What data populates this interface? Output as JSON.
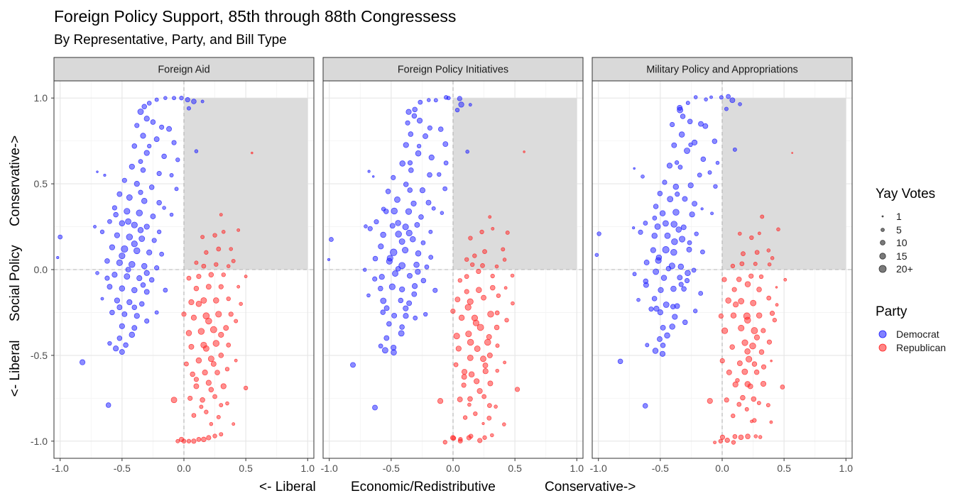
{
  "title": "Foreign Policy Support, 85th through 88th Congressess",
  "subtitle": "By Representative, Party, and Bill Type",
  "x_axis_label_parts": [
    "<- Liberal",
    "Economic/Redistributive",
    "Conservative->"
  ],
  "y_axis_label": "<- Liberal     Social Policy     Conservative->",
  "legend": {
    "size_title": "Yay Votes",
    "size_labels": [
      "1",
      "5",
      "10",
      "15",
      "20+"
    ],
    "party_title": "Party",
    "party_labels": [
      "Democrat",
      "Republican"
    ]
  },
  "colors": {
    "democrat": "#1a1aff",
    "republican": "#ff2020",
    "strip_bg": "#d9d9d9",
    "quadrant_shade": "#dcdcdc",
    "grid_major": "#e6e6e6",
    "grid_minor": "#f3f3f3",
    "reference_line": "#b3b3b3"
  },
  "chart_data": {
    "type": "scatter",
    "facets": [
      "Foreign Aid",
      "Foreign Policy Initiatives",
      "Military Policy and Appropriations"
    ],
    "xlim": [
      -1.05,
      1.05
    ],
    "ylim": [
      -1.1,
      1.1
    ],
    "x_ticks": [
      -1.0,
      -0.5,
      0.0,
      0.5,
      1.0
    ],
    "x_tick_labels": [
      "-1.0",
      "-0.5",
      "0.0",
      "0.5",
      "1.0"
    ],
    "y_ticks": [
      -1.0,
      -0.5,
      0.0,
      0.5,
      1.0
    ],
    "y_tick_labels": [
      "-1.0",
      "-0.5",
      "0.0",
      "0.5",
      "1.0"
    ],
    "grid": true,
    "legend_position": "right",
    "reference_lines": {
      "x": 0,
      "y": 0
    },
    "shaded_region": {
      "x": [
        0,
        1
      ],
      "y": [
        0,
        1
      ]
    },
    "size_scale": {
      "votes": [
        1,
        5,
        10,
        15,
        20
      ],
      "radius": [
        1.0,
        2.4,
        3.4,
        4.2,
        5.0
      ]
    },
    "series": [
      {
        "name": "Democrat",
        "points": [
          {
            "x": -1.0,
            "y": 0.19,
            "v": 8
          },
          {
            "x": -1.02,
            "y": 0.07,
            "v": 3
          },
          {
            "x": -0.82,
            "y": -0.54,
            "v": 12
          },
          {
            "x": -0.61,
            "y": -0.79,
            "v": 10
          },
          {
            "x": -0.35,
            "y": 0.92,
            "v": 14
          },
          {
            "x": -0.32,
            "y": 0.95,
            "v": 10
          },
          {
            "x": -0.28,
            "y": 0.97,
            "v": 8
          },
          {
            "x": -0.22,
            "y": 0.99,
            "v": 6
          },
          {
            "x": -0.15,
            "y": 1.0,
            "v": 5
          },
          {
            "x": -0.08,
            "y": 1.0,
            "v": 6
          },
          {
            "x": -0.02,
            "y": 1.0,
            "v": 7
          },
          {
            "x": 0.03,
            "y": 0.99,
            "v": 9
          },
          {
            "x": 0.08,
            "y": 0.98,
            "v": 10
          },
          {
            "x": 0.15,
            "y": 0.98,
            "v": 4
          },
          {
            "x": 0.04,
            "y": 0.94,
            "v": 6
          },
          {
            "x": -0.3,
            "y": 0.88,
            "v": 12
          },
          {
            "x": -0.25,
            "y": 0.86,
            "v": 10
          },
          {
            "x": -0.38,
            "y": 0.84,
            "v": 9
          },
          {
            "x": -0.18,
            "y": 0.83,
            "v": 9
          },
          {
            "x": -0.12,
            "y": 0.82,
            "v": 11
          },
          {
            "x": -0.33,
            "y": 0.78,
            "v": 12
          },
          {
            "x": -0.22,
            "y": 0.76,
            "v": 11
          },
          {
            "x": -0.08,
            "y": 0.74,
            "v": 9
          },
          {
            "x": -0.4,
            "y": 0.72,
            "v": 10
          },
          {
            "x": -0.3,
            "y": 0.68,
            "v": 12
          },
          {
            "x": -0.16,
            "y": 0.66,
            "v": 10
          },
          {
            "x": -0.05,
            "y": 0.64,
            "v": 7
          },
          {
            "x": 0.1,
            "y": 0.69,
            "v": 5
          },
          {
            "x": -0.42,
            "y": 0.6,
            "v": 12
          },
          {
            "x": -0.33,
            "y": 0.58,
            "v": 10
          },
          {
            "x": -0.2,
            "y": 0.56,
            "v": 9
          },
          {
            "x": -0.1,
            "y": 0.55,
            "v": 6
          },
          {
            "x": -0.48,
            "y": 0.52,
            "v": 9
          },
          {
            "x": -0.38,
            "y": 0.5,
            "v": 12
          },
          {
            "x": -0.26,
            "y": 0.48,
            "v": 10
          },
          {
            "x": -0.52,
            "y": 0.44,
            "v": 11
          },
          {
            "x": -0.44,
            "y": 0.42,
            "v": 14
          },
          {
            "x": -0.32,
            "y": 0.4,
            "v": 13
          },
          {
            "x": -0.2,
            "y": 0.39,
            "v": 10
          },
          {
            "x": -0.56,
            "y": 0.36,
            "v": 9
          },
          {
            "x": -0.46,
            "y": 0.34,
            "v": 15
          },
          {
            "x": -0.36,
            "y": 0.33,
            "v": 16
          },
          {
            "x": -0.25,
            "y": 0.31,
            "v": 11
          },
          {
            "x": -0.6,
            "y": 0.28,
            "v": 8
          },
          {
            "x": -0.5,
            "y": 0.27,
            "v": 13
          },
          {
            "x": -0.4,
            "y": 0.26,
            "v": 15
          },
          {
            "x": -0.3,
            "y": 0.25,
            "v": 12
          },
          {
            "x": -0.66,
            "y": 0.22,
            "v": 7
          },
          {
            "x": -0.54,
            "y": 0.2,
            "v": 12
          },
          {
            "x": -0.44,
            "y": 0.19,
            "v": 16
          },
          {
            "x": -0.34,
            "y": 0.18,
            "v": 14
          },
          {
            "x": -0.24,
            "y": 0.17,
            "v": 9
          },
          {
            "x": -0.58,
            "y": 0.13,
            "v": 12
          },
          {
            "x": -0.48,
            "y": 0.12,
            "v": 18
          },
          {
            "x": -0.38,
            "y": 0.11,
            "v": 16
          },
          {
            "x": -0.28,
            "y": 0.1,
            "v": 12
          },
          {
            "x": -0.18,
            "y": 0.09,
            "v": 8
          },
          {
            "x": -0.62,
            "y": 0.05,
            "v": 10
          },
          {
            "x": -0.52,
            "y": 0.04,
            "v": 15
          },
          {
            "x": -0.42,
            "y": 0.03,
            "v": 16
          },
          {
            "x": -0.32,
            "y": 0.02,
            "v": 13
          },
          {
            "x": -0.22,
            "y": 0.01,
            "v": 9
          },
          {
            "x": -0.56,
            "y": -0.03,
            "v": 12
          },
          {
            "x": -0.46,
            "y": -0.04,
            "v": 14
          },
          {
            "x": -0.36,
            "y": -0.05,
            "v": 12
          },
          {
            "x": -0.26,
            "y": -0.06,
            "v": 10
          },
          {
            "x": -0.6,
            "y": -0.1,
            "v": 11
          },
          {
            "x": -0.5,
            "y": -0.11,
            "v": 13
          },
          {
            "x": -0.4,
            "y": -0.12,
            "v": 13
          },
          {
            "x": -0.3,
            "y": -0.13,
            "v": 11
          },
          {
            "x": -0.54,
            "y": -0.18,
            "v": 12
          },
          {
            "x": -0.44,
            "y": -0.19,
            "v": 12
          },
          {
            "x": -0.34,
            "y": -0.2,
            "v": 10
          },
          {
            "x": -0.58,
            "y": -0.25,
            "v": 10
          },
          {
            "x": -0.48,
            "y": -0.26,
            "v": 11
          },
          {
            "x": -0.38,
            "y": -0.27,
            "v": 12
          },
          {
            "x": -0.5,
            "y": -0.33,
            "v": 12
          },
          {
            "x": -0.4,
            "y": -0.34,
            "v": 11
          },
          {
            "x": -0.3,
            "y": -0.3,
            "v": 9
          },
          {
            "x": -0.52,
            "y": -0.4,
            "v": 10
          },
          {
            "x": -0.42,
            "y": -0.38,
            "v": 13
          },
          {
            "x": -0.55,
            "y": -0.46,
            "v": 12
          },
          {
            "x": -0.5,
            "y": -0.48,
            "v": 11
          },
          {
            "x": -0.47,
            "y": -0.44,
            "v": 10
          },
          {
            "x": -0.6,
            "y": -0.43,
            "v": 7
          },
          {
            "x": -0.66,
            "y": -0.17,
            "v": 4
          },
          {
            "x": -0.7,
            "y": -0.02,
            "v": 5
          },
          {
            "x": -0.72,
            "y": 0.25,
            "v": 4
          },
          {
            "x": -0.64,
            "y": 0.55,
            "v": 3
          },
          {
            "x": -0.7,
            "y": 0.57,
            "v": 2
          },
          {
            "x": -0.2,
            "y": 0.22,
            "v": 7
          },
          {
            "x": -0.15,
            "y": -0.12,
            "v": 8
          },
          {
            "x": -0.16,
            "y": 0.36,
            "v": 5
          },
          {
            "x": -0.22,
            "y": -0.25,
            "v": 6
          },
          {
            "x": -0.06,
            "y": 0.47,
            "v": 6
          },
          {
            "x": -0.1,
            "y": 0.32,
            "v": 5
          },
          {
            "x": -0.35,
            "y": 0.63,
            "v": 8
          },
          {
            "x": -0.28,
            "y": 0.72,
            "v": 7
          },
          {
            "x": -0.45,
            "y": 0.0,
            "v": 11
          },
          {
            "x": -0.35,
            "y": 0.45,
            "v": 9
          },
          {
            "x": -0.55,
            "y": 0.32,
            "v": 10
          },
          {
            "x": -0.4,
            "y": -0.22,
            "v": 10
          },
          {
            "x": -0.62,
            "y": -0.05,
            "v": 9
          },
          {
            "x": -0.3,
            "y": -0.02,
            "v": 12
          },
          {
            "x": -0.45,
            "y": 0.28,
            "v": 14
          },
          {
            "x": -0.35,
            "y": 0.23,
            "v": 13
          },
          {
            "x": -0.5,
            "y": 0.08,
            "v": 15
          },
          {
            "x": -0.4,
            "y": 0.15,
            "v": 15
          },
          {
            "x": -0.52,
            "y": -0.22,
            "v": 11
          },
          {
            "x": -0.33,
            "y": -0.09,
            "v": 10
          }
        ]
      },
      {
        "name": "Republican",
        "points": [
          {
            "x": 0.0,
            "y": -1.0,
            "v": 8
          },
          {
            "x": 0.04,
            "y": -1.0,
            "v": 7
          },
          {
            "x": 0.08,
            "y": -1.0,
            "v": 9
          },
          {
            "x": 0.12,
            "y": -0.99,
            "v": 8
          },
          {
            "x": 0.16,
            "y": -0.99,
            "v": 10
          },
          {
            "x": 0.2,
            "y": -0.98,
            "v": 9
          },
          {
            "x": 0.25,
            "y": -0.97,
            "v": 7
          },
          {
            "x": 0.3,
            "y": -0.96,
            "v": 6
          },
          {
            "x": -0.02,
            "y": -0.99,
            "v": 9
          },
          {
            "x": -0.05,
            "y": -1.0,
            "v": 6
          },
          {
            "x": 0.08,
            "y": -0.85,
            "v": 8
          },
          {
            "x": 0.18,
            "y": -0.83,
            "v": 7
          },
          {
            "x": 0.28,
            "y": -0.86,
            "v": 6
          },
          {
            "x": 0.35,
            "y": -0.78,
            "v": 5
          },
          {
            "x": 0.4,
            "y": -0.9,
            "v": 4
          },
          {
            "x": -0.08,
            "y": -0.76,
            "v": 14
          },
          {
            "x": 0.05,
            "y": -0.75,
            "v": 9
          },
          {
            "x": 0.15,
            "y": -0.76,
            "v": 10
          },
          {
            "x": 0.25,
            "y": -0.74,
            "v": 8
          },
          {
            "x": 0.32,
            "y": -0.68,
            "v": 12
          },
          {
            "x": 0.1,
            "y": -0.68,
            "v": 11
          },
          {
            "x": 0.2,
            "y": -0.66,
            "v": 12
          },
          {
            "x": 0.5,
            "y": -0.69,
            "v": 7
          },
          {
            "x": 0.07,
            "y": -0.61,
            "v": 10
          },
          {
            "x": 0.17,
            "y": -0.6,
            "v": 12
          },
          {
            "x": 0.27,
            "y": -0.6,
            "v": 10
          },
          {
            "x": 0.12,
            "y": -0.53,
            "v": 13
          },
          {
            "x": 0.22,
            "y": -0.52,
            "v": 14
          },
          {
            "x": 0.3,
            "y": -0.5,
            "v": 10
          },
          {
            "x": 0.42,
            "y": -0.53,
            "v": 4
          },
          {
            "x": 0.06,
            "y": -0.45,
            "v": 11
          },
          {
            "x": 0.16,
            "y": -0.44,
            "v": 15
          },
          {
            "x": 0.26,
            "y": -0.43,
            "v": 16
          },
          {
            "x": 0.36,
            "y": -0.44,
            "v": 8
          },
          {
            "x": 0.04,
            "y": -0.37,
            "v": 13
          },
          {
            "x": 0.14,
            "y": -0.36,
            "v": 16
          },
          {
            "x": 0.24,
            "y": -0.35,
            "v": 17
          },
          {
            "x": 0.34,
            "y": -0.34,
            "v": 11
          },
          {
            "x": 0.08,
            "y": -0.28,
            "v": 12
          },
          {
            "x": 0.18,
            "y": -0.27,
            "v": 17
          },
          {
            "x": 0.28,
            "y": -0.26,
            "v": 15
          },
          {
            "x": 0.38,
            "y": -0.26,
            "v": 9
          },
          {
            "x": 0.06,
            "y": -0.19,
            "v": 12
          },
          {
            "x": 0.16,
            "y": -0.18,
            "v": 14
          },
          {
            "x": 0.26,
            "y": -0.18,
            "v": 13
          },
          {
            "x": 0.36,
            "y": -0.17,
            "v": 7
          },
          {
            "x": 0.1,
            "y": -0.11,
            "v": 10
          },
          {
            "x": 0.2,
            "y": -0.1,
            "v": 11
          },
          {
            "x": 0.3,
            "y": -0.1,
            "v": 9
          },
          {
            "x": 0.44,
            "y": -0.1,
            "v": 4
          },
          {
            "x": 0.12,
            "y": -0.04,
            "v": 9
          },
          {
            "x": 0.22,
            "y": -0.03,
            "v": 10
          },
          {
            "x": 0.32,
            "y": -0.03,
            "v": 7
          },
          {
            "x": 0.5,
            "y": -0.04,
            "v": 4
          },
          {
            "x": 0.16,
            "y": 0.02,
            "v": 8
          },
          {
            "x": 0.26,
            "y": 0.03,
            "v": 7
          },
          {
            "x": 0.36,
            "y": 0.02,
            "v": 5
          },
          {
            "x": 0.18,
            "y": 0.1,
            "v": 7
          },
          {
            "x": 0.28,
            "y": 0.12,
            "v": 8
          },
          {
            "x": 0.15,
            "y": 0.19,
            "v": 6
          },
          {
            "x": 0.25,
            "y": 0.2,
            "v": 7
          },
          {
            "x": 0.32,
            "y": 0.22,
            "v": 5
          },
          {
            "x": 0.3,
            "y": 0.32,
            "v": 4
          },
          {
            "x": 0.55,
            "y": 0.68,
            "v": 2
          },
          {
            "x": 0.4,
            "y": 0.05,
            "v": 6
          },
          {
            "x": 0.24,
            "y": -0.55,
            "v": 11
          },
          {
            "x": 0.2,
            "y": -0.3,
            "v": 16
          },
          {
            "x": 0.12,
            "y": -0.2,
            "v": 13
          },
          {
            "x": 0.3,
            "y": -0.38,
            "v": 12
          },
          {
            "x": 0.18,
            "y": -0.46,
            "v": 14
          },
          {
            "x": 0.1,
            "y": -0.64,
            "v": 9
          },
          {
            "x": 0.35,
            "y": -0.58,
            "v": 7
          },
          {
            "x": 0.42,
            "y": -0.3,
            "v": 6
          },
          {
            "x": 0.46,
            "y": -0.2,
            "v": 5
          },
          {
            "x": 0.02,
            "y": -0.55,
            "v": 8
          },
          {
            "x": 0.0,
            "y": -0.26,
            "v": 9
          },
          {
            "x": 0.22,
            "y": -0.9,
            "v": 5
          },
          {
            "x": 0.14,
            "y": -0.8,
            "v": 6
          },
          {
            "x": 0.04,
            "y": -0.05,
            "v": 8
          },
          {
            "x": 0.1,
            "y": 0.04,
            "v": 6
          },
          {
            "x": 0.38,
            "y": 0.12,
            "v": 5
          },
          {
            "x": 0.44,
            "y": 0.23,
            "v": 4
          },
          {
            "x": 0.22,
            "y": -0.7,
            "v": 10
          },
          {
            "x": 0.3,
            "y": -0.79,
            "v": 6
          }
        ]
      }
    ]
  }
}
